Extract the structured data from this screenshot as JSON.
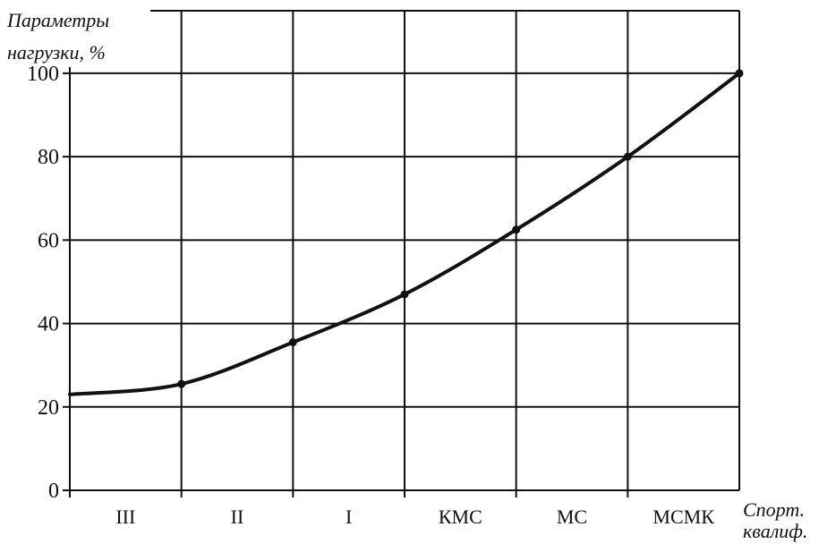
{
  "chart_data": {
    "type": "line",
    "ylabel_line1": "Параметры",
    "ylabel_line2": "нагрузки, %",
    "xlabel_line1": "Спорт.",
    "xlabel_line2": "квалиф.",
    "categories": [
      "III",
      "II",
      "I",
      "КМС",
      "МС",
      "МСМК"
    ],
    "yticks": [
      0,
      20,
      40,
      60,
      80,
      100
    ],
    "ylim": [
      0,
      115
    ],
    "curve_start": 23,
    "values": [
      25.5,
      35.5,
      47,
      62.5,
      80,
      100
    ],
    "grid": true,
    "line_color": "#111111"
  }
}
